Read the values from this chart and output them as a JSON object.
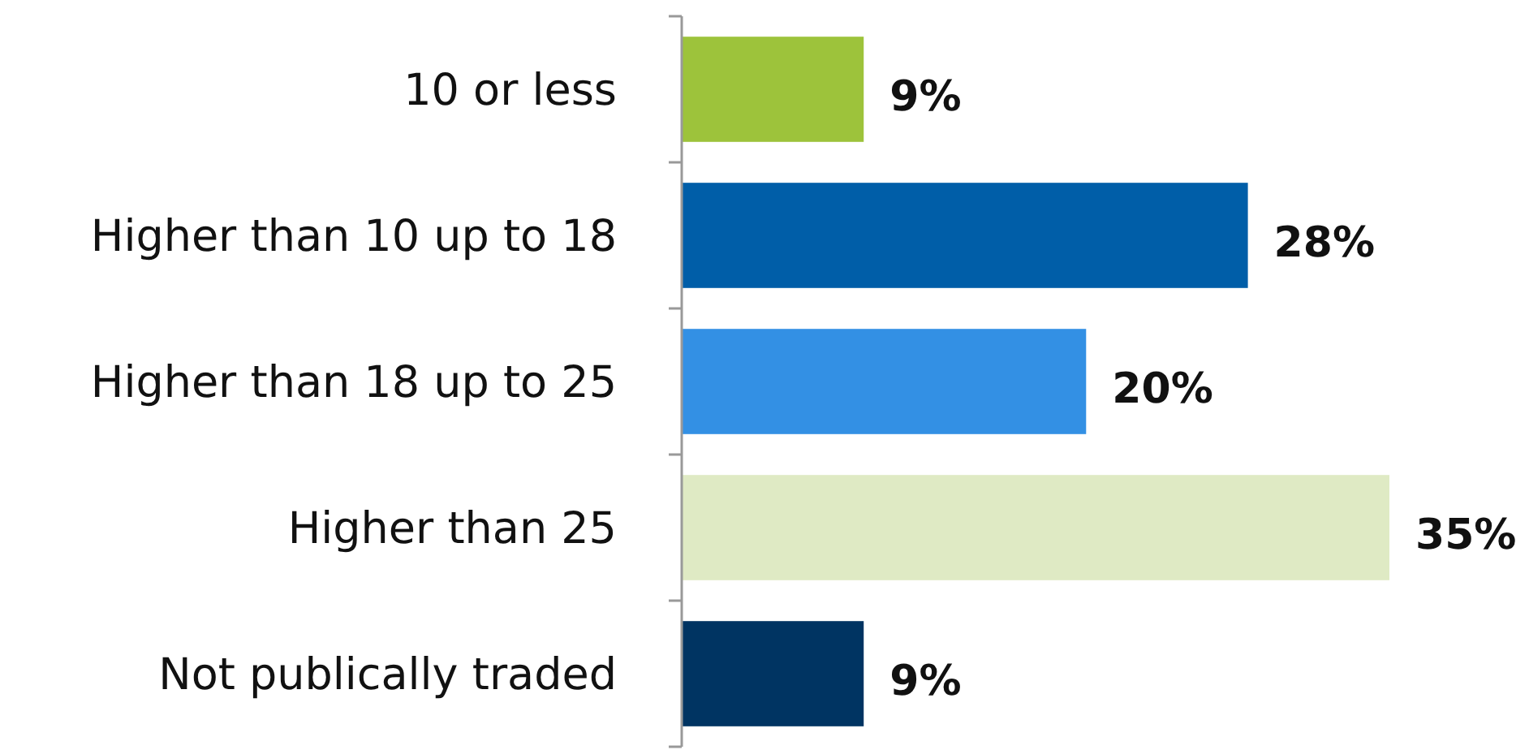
{
  "chart_data": {
    "type": "bar",
    "orientation": "horizontal",
    "categories": [
      "10 or less",
      "Higher than 10 up to 18",
      "Higher than 18 up to 25",
      "Higher than 25",
      "Not publically traded"
    ],
    "values": [
      9,
      28,
      20,
      35,
      9
    ],
    "colors": [
      "#9dc33b",
      "#005ea8",
      "#3390e4",
      "#dfeac4",
      "#003462"
    ],
    "value_labels": [
      "9%",
      "28%",
      "20%",
      "35%",
      "9%"
    ]
  }
}
